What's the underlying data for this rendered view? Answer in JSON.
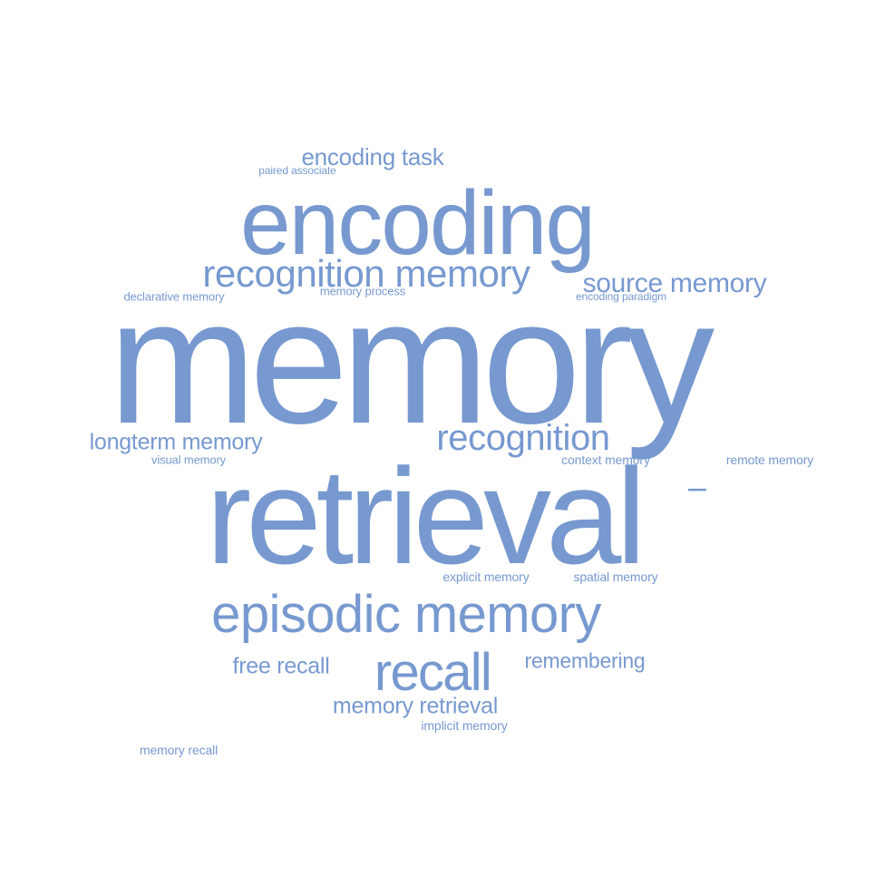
{
  "word_cloud": {
    "color": "#7799d0",
    "words": {
      "memory": "memory",
      "retrieval": "retrieval",
      "encoding": "encoding",
      "episodic_memory": "episodic memory",
      "recognition_memory": "recognition memory",
      "recognition": "recognition",
      "recall": "recall",
      "source_memory": "source memory",
      "encoding_task": "encoding task",
      "longterm_memory": "longterm memory",
      "memory_retrieval": "memory retrieval",
      "free_recall": "free recall",
      "remembering": "remembering",
      "paired_associate": "paired associate",
      "declarative_memory": "declarative memory",
      "memory_process": "memory process",
      "encoding_paradigm": "encoding paradigm",
      "visual_memory": "visual memory",
      "context_memory": "context memory",
      "remote_memory": "remote memory",
      "explicit_memory": "explicit memory",
      "spatial_memory": "spatial memory",
      "implicit_memory": "implicit memory",
      "memory_recall": "memory recall",
      "vertical_word": "l"
    }
  }
}
